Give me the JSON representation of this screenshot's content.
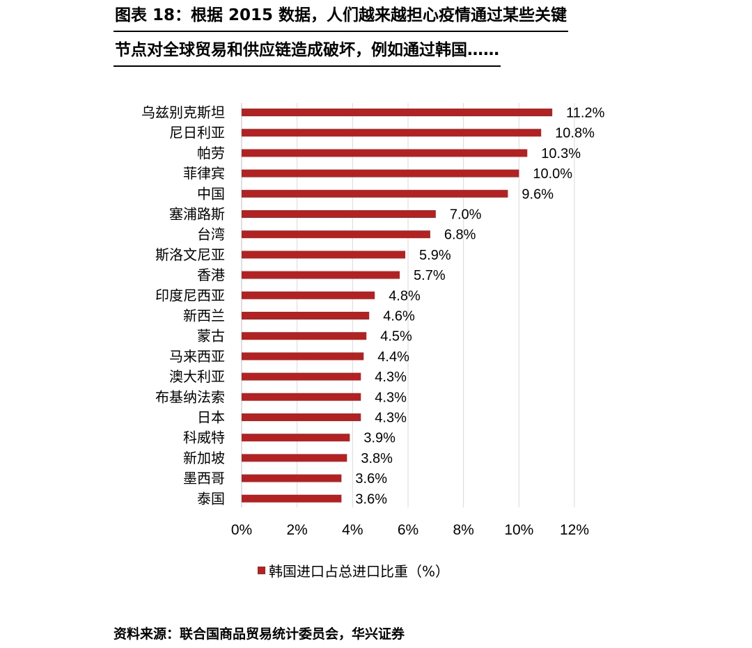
{
  "title": {
    "line1": "图表 18：根据 2015 数据，人们越来越担心疫情通过某些关键",
    "line2": "节点对全球贸易和供应链造成破坏，例如通过韩国……"
  },
  "source": "资料来源：联合国商品贸易统计委员会，华兴证券",
  "colors": {
    "bar": "#b22222",
    "grid": "#d9d9d9",
    "text": "#000000"
  },
  "chart_data": {
    "type": "bar",
    "orientation": "horizontal",
    "categories": [
      "乌兹别克斯坦",
      "尼日利亚",
      "帕劳",
      "菲律宾",
      "中国",
      "塞浦路斯",
      "台湾",
      "斯洛文尼亚",
      "香港",
      "印度尼西亚",
      "新西兰",
      "蒙古",
      "马来西亚",
      "澳大利亚",
      "布基纳法索",
      "日本",
      "科威特",
      "新加坡",
      "墨西哥",
      "泰国"
    ],
    "series": [
      {
        "name": "韩国进口占总进口比重（%）",
        "values": [
          11.2,
          10.8,
          10.3,
          10.0,
          9.6,
          7.0,
          6.8,
          5.9,
          5.7,
          4.8,
          4.6,
          4.5,
          4.4,
          4.3,
          4.3,
          4.3,
          3.9,
          3.8,
          3.6,
          3.6
        ]
      }
    ],
    "value_labels": [
      "11.2%",
      "10.8%",
      "10.3%",
      "10.0%",
      "9.6%",
      "7.0%",
      "6.8%",
      "5.9%",
      "5.7%",
      "4.8%",
      "4.6%",
      "4.5%",
      "4.4%",
      "4.3%",
      "4.3%",
      "4.3%",
      "3.9%",
      "3.8%",
      "3.6%",
      "3.6%"
    ],
    "x_ticks": [
      0,
      2,
      4,
      6,
      8,
      10,
      12
    ],
    "x_tick_labels": [
      "0%",
      "2%",
      "4%",
      "6%",
      "8%",
      "10%",
      "12%"
    ],
    "xlim": [
      0,
      12
    ],
    "grid": "vertical",
    "legend_position": "bottom"
  }
}
